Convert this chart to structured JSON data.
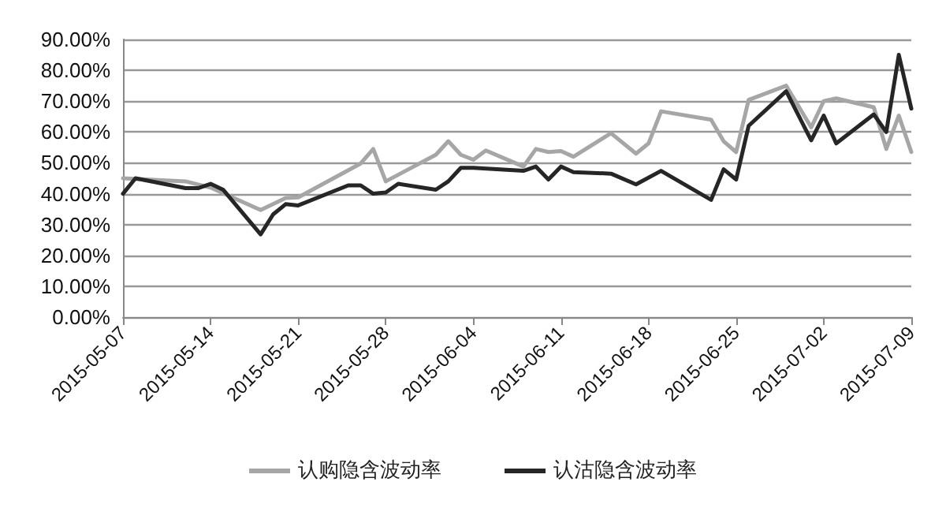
{
  "chart_data": {
    "type": "line",
    "legend": "bottom",
    "grid": "y",
    "marker": "none",
    "line_style": "solid",
    "xlim": [
      "2015-05-07",
      "2015-07-09"
    ],
    "xticks": [
      "2015-05-07",
      "2015-05-14",
      "2015-05-21",
      "2015-05-28",
      "2015-06-04",
      "2015-06-11",
      "2015-06-18",
      "2015-06-25",
      "2015-07-02",
      "2015-07-09"
    ],
    "ylim": [
      0,
      90
    ],
    "yticks": [
      {
        "value": 0,
        "label": "0.00%"
      },
      {
        "value": 10,
        "label": "10.00%"
      },
      {
        "value": 20,
        "label": "20.00%"
      },
      {
        "value": 30,
        "label": "30.00%"
      },
      {
        "value": 40,
        "label": "40.00%"
      },
      {
        "value": 50,
        "label": "50.00%"
      },
      {
        "value": 60,
        "label": "60.00%"
      },
      {
        "value": 70,
        "label": "70.00%"
      },
      {
        "value": 80,
        "label": "80.00%"
      },
      {
        "value": 90,
        "label": "90.00%"
      }
    ],
    "series": [
      {
        "name": "认购隐含波动率",
        "color": "#a6a6a6",
        "x": [
          "2015-05-07",
          "2015-05-12",
          "2015-05-13",
          "2015-05-14",
          "2015-05-18",
          "2015-05-20",
          "2015-05-21",
          "2015-05-26",
          "2015-05-27",
          "2015-05-28",
          "2015-06-01",
          "2015-06-02",
          "2015-06-03",
          "2015-06-04",
          "2015-06-05",
          "2015-06-08",
          "2015-06-09",
          "2015-06-10",
          "2015-06-11",
          "2015-06-12",
          "2015-06-15",
          "2015-06-17",
          "2015-06-18",
          "2015-06-19",
          "2015-06-23",
          "2015-06-24",
          "2015-06-25",
          "2015-06-26",
          "2015-06-29",
          "2015-07-01",
          "2015-07-02",
          "2015-07-03",
          "2015-07-06",
          "2015-07-07",
          "2015-07-08",
          "2015-07-09"
        ],
        "values": [
          45,
          44,
          43,
          42,
          34.7,
          38.6,
          38.8,
          49.8,
          54.5,
          44,
          52.6,
          57,
          52.6,
          51,
          54,
          48.8,
          54.5,
          53.5,
          53.8,
          52,
          59.6,
          53,
          56.3,
          66.7,
          64,
          57,
          53.5,
          70.4,
          75,
          61.5,
          70,
          70.9,
          68,
          54.5,
          65.3,
          53.5
        ]
      },
      {
        "name": "认沽隐含波动率",
        "color": "#262626",
        "x": [
          "2015-05-07",
          "2015-05-08",
          "2015-05-12",
          "2015-05-13",
          "2015-05-14",
          "2015-05-15",
          "2015-05-18",
          "2015-05-19",
          "2015-05-20",
          "2015-05-21",
          "2015-05-25",
          "2015-05-26",
          "2015-05-27",
          "2015-05-28",
          "2015-05-29",
          "2015-06-01",
          "2015-06-02",
          "2015-06-03",
          "2015-06-04",
          "2015-06-08",
          "2015-06-09",
          "2015-06-10",
          "2015-06-11",
          "2015-06-12",
          "2015-06-15",
          "2015-06-17",
          "2015-06-19",
          "2015-06-23",
          "2015-06-24",
          "2015-06-25",
          "2015-06-26",
          "2015-06-29",
          "2015-07-01",
          "2015-07-02",
          "2015-07-03",
          "2015-07-06",
          "2015-07-07",
          "2015-07-08",
          "2015-07-09"
        ],
        "values": [
          40,
          45,
          41.8,
          41.8,
          43.2,
          41.3,
          26.8,
          33.3,
          36.6,
          36.2,
          42.7,
          42.7,
          40,
          40.4,
          43.2,
          41.3,
          44,
          48.4,
          48.4,
          47.4,
          48.8,
          44.6,
          48.8,
          47,
          46.5,
          43,
          47.4,
          38,
          47.9,
          44.6,
          62,
          73.2,
          57.3,
          65.3,
          56.3,
          65.7,
          60,
          85,
          67.6
        ]
      }
    ]
  }
}
